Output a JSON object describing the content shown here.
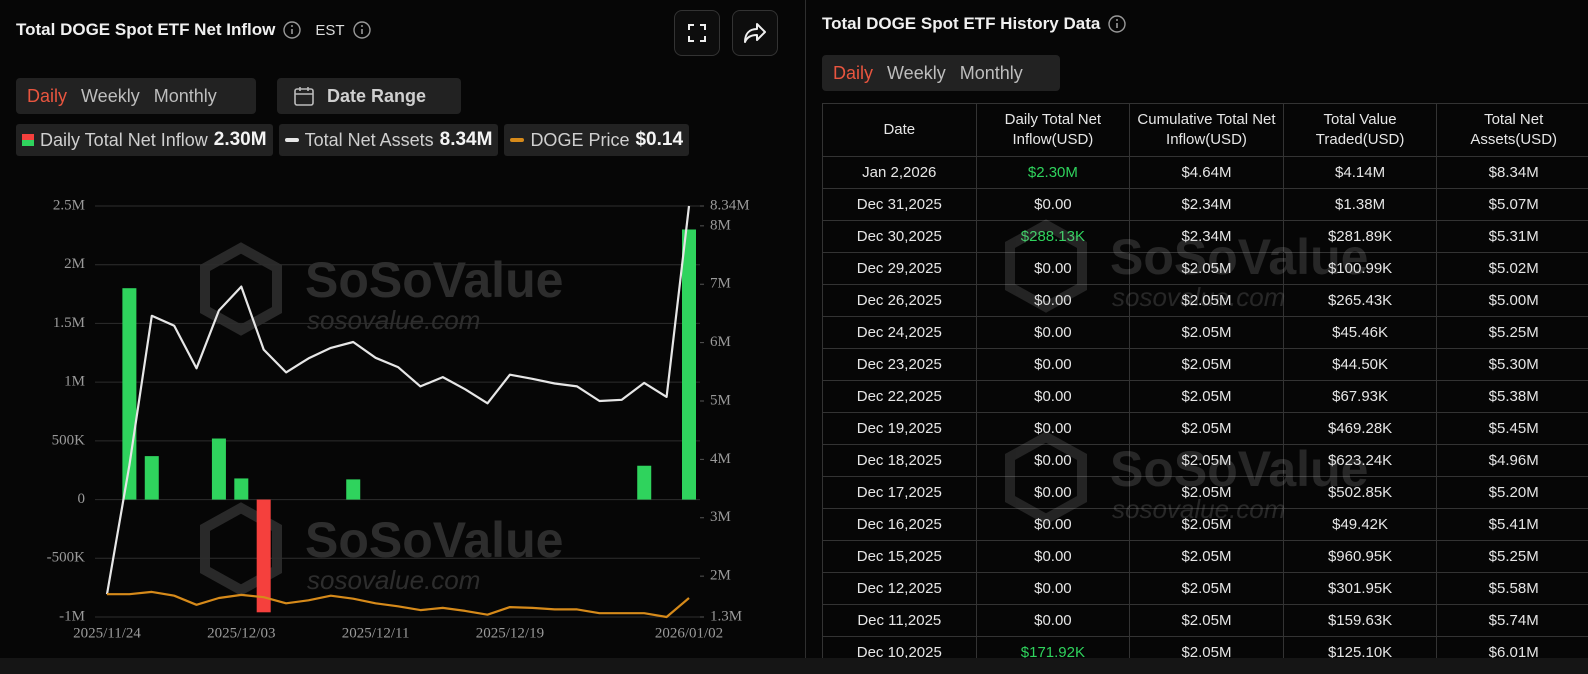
{
  "header": {
    "title": "Total DOGE Spot ETF Net Inflow",
    "timezone": "EST"
  },
  "toggles": [
    "Daily",
    "Weekly",
    "Monthly"
  ],
  "selected_toggle": 0,
  "date_range": "Date Range",
  "watermark": {
    "brand": "SoSoValue",
    "url": "sosovalue.com"
  },
  "chart_data": {
    "type": "bar",
    "categories": [
      "2025/11/24",
      null,
      null,
      null,
      null,
      null,
      "2025/12/03",
      null,
      null,
      null,
      null,
      null,
      "2025/12/11",
      null,
      null,
      null,
      null,
      null,
      "2025/12/19",
      null,
      null,
      null,
      null,
      null,
      null,
      null,
      "2026/01/02"
    ],
    "series": [
      {
        "name": "Daily Total Net Inflow",
        "legend_value": "2.30M",
        "color": "#2fd35d",
        "negative_color": "#f5403d",
        "values": [
          0,
          1.8,
          0.37,
          0,
          0,
          0.52,
          0.18,
          -0.96,
          0,
          0,
          0,
          0.17192,
          0,
          0,
          0,
          0,
          0,
          0,
          0,
          0,
          0,
          0,
          0,
          0,
          0.28813,
          0,
          2.3
        ]
      },
      {
        "name": "Total Net Assets",
        "legend_value": "8.34M",
        "color": "#e6e6e6",
        "type": "line",
        "axis": "y2",
        "values": [
          1.69,
          3.9,
          6.46,
          6.29,
          5.56,
          6.55,
          6.96,
          5.88,
          5.49,
          5.73,
          5.91,
          6.01,
          5.74,
          5.58,
          5.25,
          5.41,
          5.2,
          4.96,
          5.45,
          5.38,
          5.3,
          5.25,
          5.0,
          5.02,
          5.31,
          5.07,
          8.34
        ]
      },
      {
        "name": "DOGE Price",
        "legend_value": "$0.14",
        "color": "#d68a1a",
        "type": "line",
        "axis": "y3",
        "values": [
          0.145,
          0.145,
          0.148,
          0.143,
          0.131,
          0.14,
          0.144,
          0.141,
          0.133,
          0.137,
          0.143,
          0.139,
          0.133,
          0.129,
          0.124,
          0.127,
          0.123,
          0.118,
          0.128,
          0.127,
          0.125,
          0.125,
          0.12,
          0.12,
          0.12,
          0.115,
          0.14
        ]
      }
    ],
    "ylim": [
      -1,
      2.5
    ],
    "yticks": [
      {
        "value": 2.5,
        "label": "2.5M"
      },
      {
        "value": 2,
        "label": "2M"
      },
      {
        "value": 1.5,
        "label": "1.5M"
      },
      {
        "value": 1,
        "label": "1M"
      },
      {
        "value": 0.5,
        "label": "500K"
      },
      0,
      {
        "value": -0.5,
        "label": "-500K"
      },
      {
        "value": -1,
        "label": "-1M"
      }
    ],
    "y2lim": [
      1.3,
      8.34
    ],
    "y2ticks": [
      {
        "value": 8.34,
        "label": "8.34M"
      },
      {
        "value": 8,
        "label": "8M"
      },
      {
        "value": 7,
        "label": "7M"
      },
      {
        "value": 6,
        "label": "6M"
      },
      {
        "value": 5,
        "label": "5M"
      },
      {
        "value": 4,
        "label": "4M"
      },
      {
        "value": 3,
        "label": "3M"
      },
      {
        "value": 2,
        "label": "2M"
      },
      {
        "value": 1.3,
        "label": "1.3M"
      }
    ],
    "y3lim": [
      0.115,
      0.655
    ],
    "grid": true
  },
  "history": {
    "title": "Total DOGE Spot ETF History Data",
    "tabs": [
      "Daily",
      "Weekly",
      "Monthly"
    ],
    "selected_tab": 0,
    "columns": [
      "Date",
      "Daily Total Net Inflow(USD)",
      "Cumulative Total Net Inflow(USD)",
      "Total Value Traded(USD)",
      "Total Net Assets(USD)"
    ],
    "rows": [
      [
        "Jan 2,2026",
        "$2.30M",
        "$4.64M",
        "$4.14M",
        "$8.34M"
      ],
      [
        "Dec 31,2025",
        "$0.00",
        "$2.34M",
        "$1.38M",
        "$5.07M"
      ],
      [
        "Dec 30,2025",
        "$288.13K",
        "$2.34M",
        "$281.89K",
        "$5.31M"
      ],
      [
        "Dec 29,2025",
        "$0.00",
        "$2.05M",
        "$100.99K",
        "$5.02M"
      ],
      [
        "Dec 26,2025",
        "$0.00",
        "$2.05M",
        "$265.43K",
        "$5.00M"
      ],
      [
        "Dec 24,2025",
        "$0.00",
        "$2.05M",
        "$45.46K",
        "$5.25M"
      ],
      [
        "Dec 23,2025",
        "$0.00",
        "$2.05M",
        "$44.50K",
        "$5.30M"
      ],
      [
        "Dec 22,2025",
        "$0.00",
        "$2.05M",
        "$67.93K",
        "$5.38M"
      ],
      [
        "Dec 19,2025",
        "$0.00",
        "$2.05M",
        "$469.28K",
        "$5.45M"
      ],
      [
        "Dec 18,2025",
        "$0.00",
        "$2.05M",
        "$623.24K",
        "$4.96M"
      ],
      [
        "Dec 17,2025",
        "$0.00",
        "$2.05M",
        "$502.85K",
        "$5.20M"
      ],
      [
        "Dec 16,2025",
        "$0.00",
        "$2.05M",
        "$49.42K",
        "$5.41M"
      ],
      [
        "Dec 15,2025",
        "$0.00",
        "$2.05M",
        "$960.95K",
        "$5.25M"
      ],
      [
        "Dec 12,2025",
        "$0.00",
        "$2.05M",
        "$301.95K",
        "$5.58M"
      ],
      [
        "Dec 11,2025",
        "$0.00",
        "$2.05M",
        "$159.63K",
        "$5.74M"
      ],
      [
        "Dec 10,2025",
        "$171.92K",
        "$2.05M",
        "$125.10K",
        "$6.01M"
      ]
    ]
  }
}
